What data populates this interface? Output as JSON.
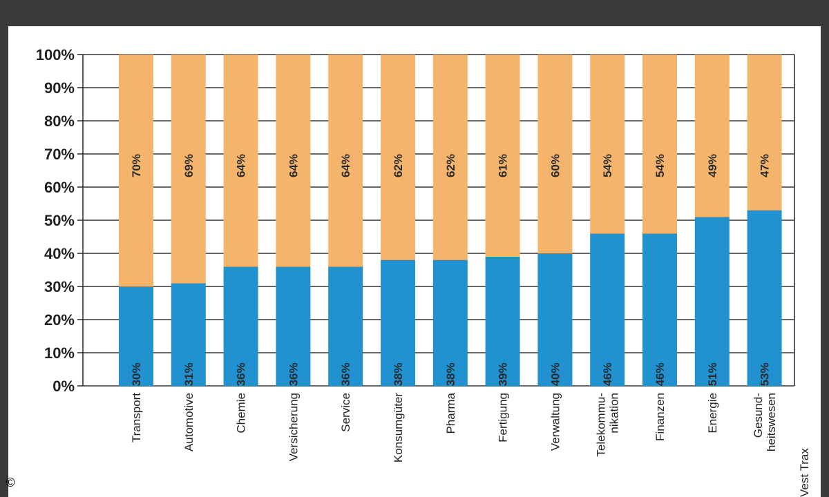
{
  "header": {
    "title": ""
  },
  "credit": "©",
  "source": "Vest Trax",
  "chart_data": {
    "type": "bar",
    "stacked": true,
    "categories": [
      [
        "Transport"
      ],
      [
        "Automotive"
      ],
      [
        "Chemie"
      ],
      [
        "Versicherung"
      ],
      [
        "Service"
      ],
      [
        "Konsumgüter"
      ],
      [
        "Pharma"
      ],
      [
        "Fertigung"
      ],
      [
        "Verwaltung"
      ],
      [
        "Telekommu-",
        "nikation"
      ],
      [
        "Finanzen"
      ],
      [
        "Energie"
      ],
      [
        "Gesund-",
        "heitswesen"
      ]
    ],
    "series": [
      {
        "values": [
          30,
          31,
          36,
          36,
          36,
          38,
          38,
          39,
          40,
          46,
          46,
          51,
          53
        ],
        "labels": [
          "30%",
          "31%",
          "36%",
          "36%",
          "36%",
          "38%",
          "38%",
          "39%",
          "40%",
          "46%",
          "46%",
          "51%",
          "53%"
        ],
        "color": "#2291cf"
      },
      {
        "values": [
          70,
          69,
          64,
          64,
          64,
          62,
          62,
          61,
          60,
          54,
          54,
          49,
          47
        ],
        "labels": [
          "70%",
          "69%",
          "64%",
          "64%",
          "64%",
          "62%",
          "62%",
          "61%",
          "60%",
          "54%",
          "54%",
          "49%",
          "47%"
        ],
        "color": "#f5b46c"
      }
    ],
    "ylim": [
      0,
      100
    ],
    "yticks": [
      "0%",
      "10%",
      "20%",
      "30%",
      "40%",
      "50%",
      "60%",
      "70%",
      "80%",
      "90%",
      "100%"
    ],
    "grid": true,
    "legend": "none"
  }
}
